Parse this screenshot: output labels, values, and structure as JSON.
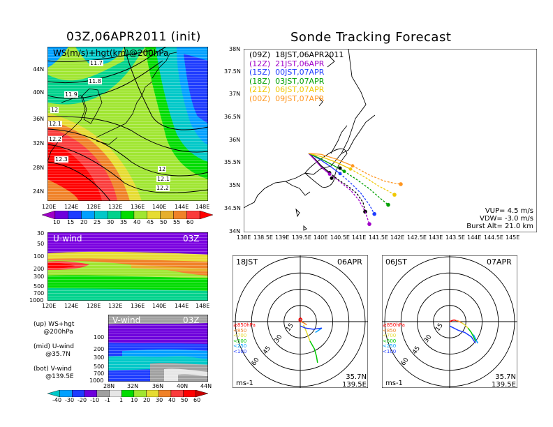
{
  "init_title": "03Z,06APR2011 (init)",
  "forecast_title": "Sonde Tracking Forecast",
  "colors": {
    "bg": "#ffffff",
    "line": "#000000",
    "trk_00z": "#000000",
    "trk_12z": "#a000c8",
    "trk_15z": "#1e3cff",
    "trk_18z": "#00a000",
    "trk_21z": "#f0c800",
    "trk_00z2": "#ff9620"
  },
  "upper_map": {
    "panel_label": "WS(m/s)+hgt(km)@200hPa",
    "lat_ticks": [
      "44N",
      "40N",
      "36N",
      "32N",
      "28N",
      "24N"
    ],
    "lon_ticks": [
      "120E",
      "124E",
      "128E",
      "132E",
      "136E",
      "140E",
      "144E",
      "148E"
    ],
    "contour_labels": [
      "11.7",
      "11.8",
      "11.9",
      "12",
      "12.1",
      "12.2",
      "12.3",
      "12",
      "12.1",
      "12.2"
    ]
  },
  "colorbar_ws": {
    "labels": [
      "10",
      "15",
      "20",
      "25",
      "30",
      "35",
      "40",
      "45",
      "50",
      "55",
      "60"
    ],
    "colors": [
      "#a000c8",
      "#6e00dc",
      "#1e3cff",
      "#00a0ff",
      "#00c8c8",
      "#00d28c",
      "#00dc00",
      "#a0e632",
      "#e6dc32",
      "#e6af2d",
      "#f08228",
      "#fa3c3c",
      "#ff0000"
    ]
  },
  "u_wind": {
    "panel_label": "U-wind",
    "time_label": "03Z",
    "p_ticks": [
      "30",
      "50",
      "100",
      "200",
      "300",
      "500",
      "700",
      "1000"
    ],
    "lon_ticks": [
      "120E",
      "124E",
      "128E",
      "132E",
      "136E",
      "140E",
      "144E",
      "148E"
    ]
  },
  "v_wind": {
    "panel_label": "V-wind",
    "time_label": "03Z",
    "p_ticks": [
      "100",
      "200",
      "300",
      "500",
      "700",
      "1000"
    ],
    "lat_ticks": [
      "28N",
      "32N",
      "36N",
      "40N",
      "44N"
    ]
  },
  "legend_notes": {
    "up": "(up) WS+hgt\n     @200hPa",
    "mid": "(mid) U-wind\n      @35.7N",
    "bot": "(bot) V-wind\n      @139.5E"
  },
  "colorbar_uv": {
    "labels": [
      "-40",
      "-30",
      "-20",
      "-10",
      "-1",
      "1",
      "10",
      "20",
      "30",
      "40",
      "50",
      "60"
    ],
    "colors": [
      "#00c8c8",
      "#00a0ff",
      "#1e3cff",
      "#6e00dc",
      "#a0a0a0",
      "#e6e6e6",
      "#00dc00",
      "#a0e632",
      "#e6dc32",
      "#f08228",
      "#fa3c3c",
      "#ff0000",
      "#c80000"
    ]
  },
  "track_map": {
    "lat_ticks": [
      "38N",
      "37.5N",
      "37N",
      "36.5N",
      "36N",
      "35.5N",
      "35N",
      "34.5N",
      "34N"
    ],
    "lon_ticks": [
      "138E",
      "138.5E",
      "139E",
      "139.5E",
      "140E",
      "140.5E",
      "141E",
      "141.5E",
      "142E",
      "142.5E",
      "143E",
      "143.5E",
      "144E",
      "144.5E",
      "145E"
    ],
    "legend": [
      {
        "code": "(09Z)",
        "text": "18JST,06APR2011"
      },
      {
        "code": "(12Z)",
        "text": "21JST,06APR"
      },
      {
        "code": "(15Z)",
        "text": "00JST,07APR"
      },
      {
        "code": "(18Z)",
        "text": "03JST,07APR"
      },
      {
        "code": "(21Z)",
        "text": "06JST,07APR"
      },
      {
        "code": "(00Z)",
        "text": "09JST,07APR"
      }
    ],
    "params": [
      "VUP= 4.5 m/s",
      "VDW= -3.0 m/s",
      "Burst Alt= 21.0 km"
    ]
  },
  "chart_data": [
    {
      "type": "line",
      "title": "Sonde Tracking Forecast",
      "xlabel": "",
      "ylabel": "",
      "xlim": [
        138,
        145
      ],
      "ylim": [
        34,
        38
      ],
      "series": [
        {
          "name": "18JST,06APR2011",
          "color_key": "trk_00z",
          "x": [
            139.55,
            139.7,
            139.85,
            140.05,
            140.25,
            140.5,
            140.7,
            140.85,
            140.9
          ],
          "y": [
            35.72,
            35.6,
            35.45,
            35.3,
            35.15,
            35.0,
            34.85,
            34.65,
            34.45
          ]
        },
        {
          "name": "21JST,06APR",
          "color_key": "trk_12z",
          "x": [
            139.55,
            139.7,
            139.85,
            140.05,
            140.3,
            140.55,
            140.75,
            140.9,
            141.0
          ],
          "y": [
            35.72,
            35.58,
            35.42,
            35.27,
            35.1,
            34.92,
            34.7,
            34.45,
            34.18
          ]
        },
        {
          "name": "00JST,07APR",
          "color_key": "trk_15z",
          "x": [
            139.55,
            139.8,
            140.05,
            140.3,
            140.55,
            140.8,
            141.0,
            141.12
          ],
          "y": [
            35.72,
            35.6,
            35.45,
            35.28,
            35.08,
            34.85,
            34.6,
            34.4
          ]
        },
        {
          "name": "03JST,07APR",
          "color_key": "trk_18z",
          "x": [
            139.55,
            139.8,
            140.1,
            140.4,
            140.7,
            141.0,
            141.25,
            141.45
          ],
          "y": [
            35.72,
            35.62,
            35.48,
            35.33,
            35.15,
            34.95,
            34.75,
            34.6
          ]
        },
        {
          "name": "06JST,07APR",
          "color_key": "trk_21z",
          "x": [
            139.55,
            139.85,
            140.2,
            140.55,
            140.9,
            141.2,
            141.45,
            141.6
          ],
          "y": [
            35.72,
            35.65,
            35.53,
            35.38,
            35.2,
            35.02,
            34.9,
            34.82
          ]
        },
        {
          "name": "09JST,07APR",
          "color_key": "trk_00z2",
          "x": [
            139.55,
            139.85,
            140.2,
            140.6,
            141.0,
            141.35,
            141.6,
            141.75
          ],
          "y": [
            35.72,
            35.7,
            35.6,
            35.45,
            35.25,
            35.12,
            35.07,
            35.05
          ]
        }
      ],
      "markers": [
        {
          "name": "launch",
          "x": 140.1,
          "y": 35.18
        },
        {
          "name": "burst",
          "x": 140.3,
          "y": 35.4
        }
      ]
    },
    {
      "type": "line",
      "title": "",
      "time_label": "18JST",
      "date_label": "06APR",
      "ring_labels": [
        "15",
        "30",
        "45",
        "60"
      ],
      "unit": "ms-1",
      "location": [
        "35.7N",
        "139.5E"
      ],
      "levels": [
        {
          "name": "≥850hPa",
          "color": "#ff0000",
          "dx": [
            0,
            0.8,
            1.6,
            0.4,
            -0.9,
            -1.2,
            -0.5,
            0.6
          ],
          "dy": [
            0,
            0.5,
            2.2,
            3.4,
            2.8,
            1.4,
            0.2,
            0.3
          ]
        },
        {
          "name": "<850",
          "color": "#f08228",
          "dx": [
            0.5,
            3,
            6
          ],
          "dy": [
            0,
            -1,
            -3
          ]
        },
        {
          "name": "<700",
          "color": "#e6dc32",
          "dx": [
            3,
            6,
            9
          ],
          "dy": [
            -3,
            -10,
            -18
          ]
        },
        {
          "name": "<500",
          "color": "#00c800",
          "dx": [
            9,
            13,
            15,
            16
          ],
          "dy": [
            -18,
            -25,
            -32,
            -38
          ]
        },
        {
          "name": "<250",
          "color": "#00a0ff",
          "dx": [
            14,
            17,
            20
          ],
          "dy": [
            -10,
            -8,
            -6
          ]
        },
        {
          "name": "<100",
          "color": "#1e3cff",
          "dx": [
            0,
            5,
            12,
            20
          ],
          "dy": [
            -4,
            -6,
            -7,
            -6
          ]
        }
      ]
    },
    {
      "type": "line",
      "title": "",
      "time_label": "06JST",
      "date_label": "07APR",
      "ring_labels": [
        "15",
        "30",
        "45",
        "60"
      ],
      "unit": "ms-1",
      "location": [
        "35.7N",
        "139.5E"
      ],
      "levels": [
        {
          "name": "≥850hPa",
          "color": "#ff0000",
          "dx": [
            0,
            2,
            4,
            6
          ],
          "dy": [
            0,
            1,
            1.5,
            1
          ]
        },
        {
          "name": "<850",
          "color": "#f08228",
          "dx": [
            6,
            8,
            11
          ],
          "dy": [
            1,
            0.5,
            -1
          ]
        },
        {
          "name": "<700",
          "color": "#e6dc32",
          "dx": [
            11,
            14,
            17
          ],
          "dy": [
            -1,
            -3,
            -6
          ]
        },
        {
          "name": "<500",
          "color": "#00c800",
          "dx": [
            17,
            20,
            22,
            24
          ],
          "dy": [
            -6,
            -10,
            -14,
            -18
          ]
        },
        {
          "name": "<250",
          "color": "#00a0ff",
          "dx": [
            22,
            24,
            26
          ],
          "dy": [
            -12,
            -16,
            -20
          ]
        },
        {
          "name": "<100",
          "color": "#1e3cff",
          "dx": [
            0,
            8,
            14,
            20,
            24
          ],
          "dy": [
            -4,
            -8,
            -10,
            -14,
            -20
          ]
        }
      ]
    }
  ]
}
